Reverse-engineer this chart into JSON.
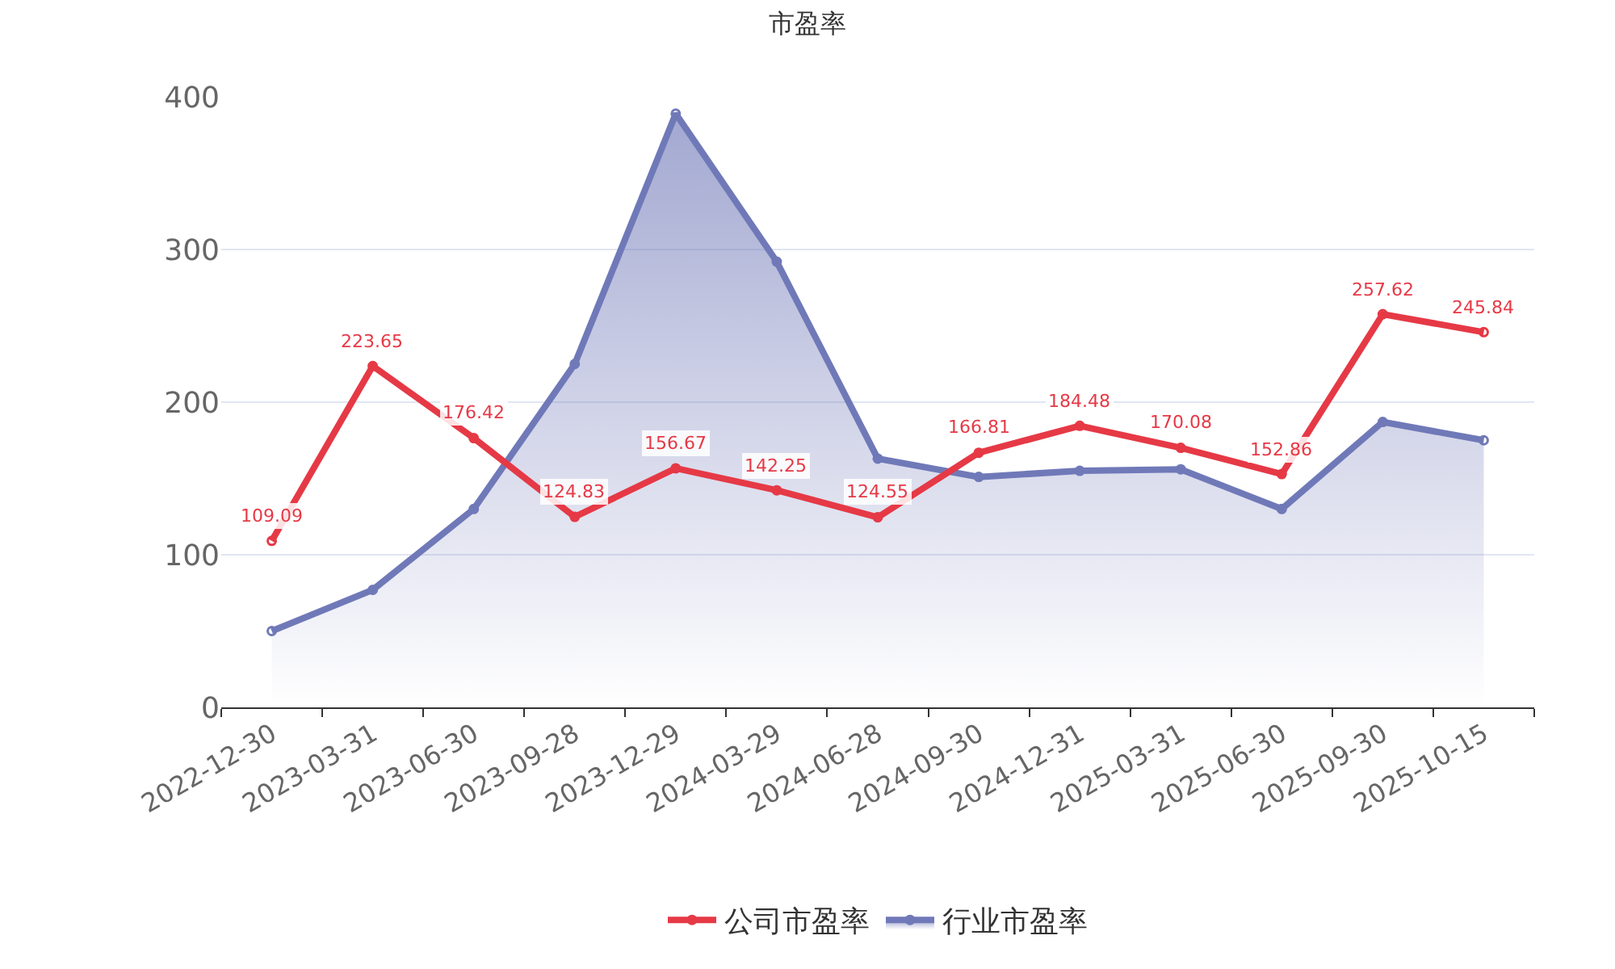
{
  "chart_data": {
    "type": "line",
    "title": "市盈率",
    "categories": [
      "2022-12-30",
      "2023-03-31",
      "2023-06-30",
      "2023-09-28",
      "2023-12-29",
      "2024-03-29",
      "2024-06-28",
      "2024-09-30",
      "2024-12-31",
      "2025-03-31",
      "2025-06-30",
      "2025-09-30",
      "2025-10-15"
    ],
    "series": [
      {
        "name": "公司市盈率",
        "color": "#e63946",
        "values": [
          109.09,
          223.65,
          176.42,
          124.83,
          156.67,
          142.25,
          124.55,
          166.81,
          184.48,
          170.08,
          152.86,
          257.62,
          245.84
        ],
        "value_labels": [
          "109.09",
          "223.65",
          "176.42",
          "124.83",
          "156.67",
          "142.25",
          "124.55",
          "166.81",
          "184.48",
          "170.08",
          "152.86",
          "257.62",
          "245.84"
        ]
      },
      {
        "name": "行业市盈率",
        "type": "area",
        "color": "#7079b8",
        "values": [
          50,
          77,
          130,
          225,
          389,
          292,
          163,
          151,
          155,
          156,
          130,
          187,
          175
        ]
      }
    ],
    "ylim": [
      0,
      400
    ],
    "yticks": [
      0,
      100,
      200,
      300,
      400
    ],
    "grid": "y",
    "legend": "bottom",
    "marker": "circle",
    "line_style": "solid"
  }
}
